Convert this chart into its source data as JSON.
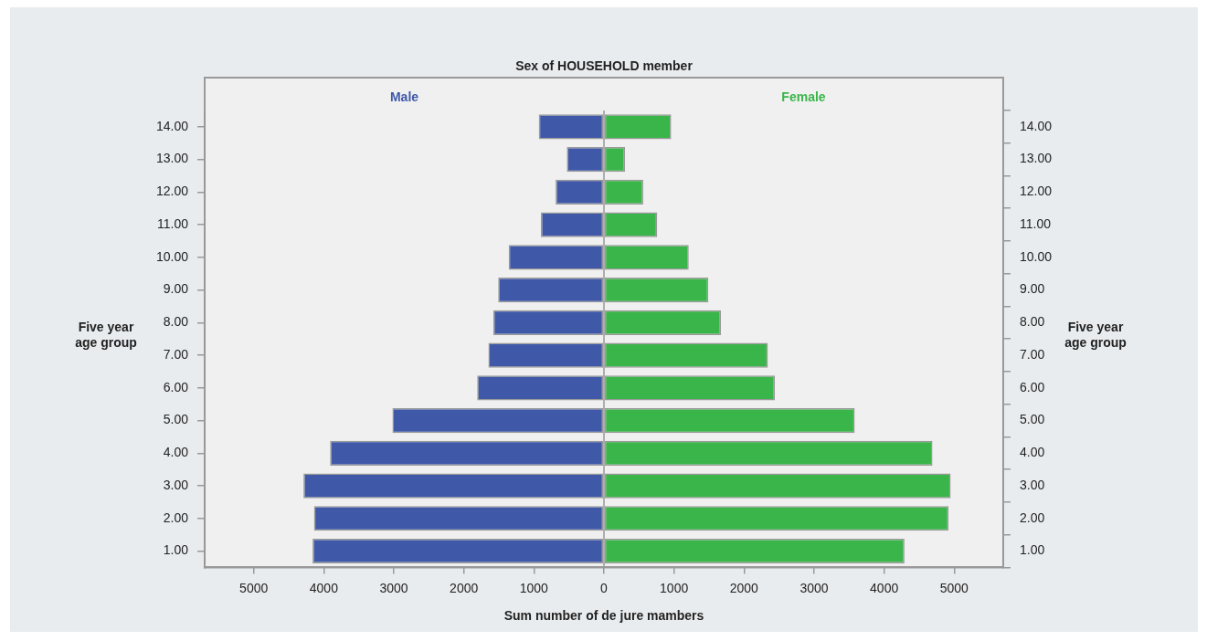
{
  "chart_data": {
    "type": "bar",
    "orientation": "horizontal",
    "stacked": true,
    "title": "Sex of HOUSEHOLD member",
    "xlabel": "Sum number of de jure mambers",
    "ylabel": "Five year age group",
    "y2label": "Five year age group",
    "categories": [
      "14.00",
      "13.00",
      "12.00",
      "11.00",
      "10.00",
      "9.00",
      "8.00",
      "7.00",
      "6.00",
      "5.00",
      "4.00",
      "3.00",
      "2.00",
      "1.00"
    ],
    "series": [
      {
        "name": "Male",
        "color": "#3f59a8",
        "values": [
          -930,
          -530,
          -690,
          -900,
          -1360,
          -1510,
          -1580,
          -1650,
          -1810,
          -3020,
          -3910,
          -4290,
          -4140,
          -4160
        ]
      },
      {
        "name": "Female",
        "color": "#3ab54a",
        "values": [
          960,
          300,
          560,
          760,
          1210,
          1490,
          1670,
          2340,
          2440,
          3580,
          4690,
          4950,
          4920,
          4290
        ]
      }
    ],
    "xlim": [
      -5700,
      5700
    ],
    "xticks": [
      {
        "value": -5000,
        "label": "5000"
      },
      {
        "value": -4000,
        "label": "4000"
      },
      {
        "value": -3000,
        "label": "3000"
      },
      {
        "value": -2000,
        "label": "2000"
      },
      {
        "value": -1000,
        "label": "1000"
      },
      0,
      1000,
      2000,
      3000,
      4000,
      5000
    ],
    "ref_lines": [
      {
        "axis": "x",
        "value": 0,
        "color": "#999999"
      }
    ],
    "grid": false
  }
}
